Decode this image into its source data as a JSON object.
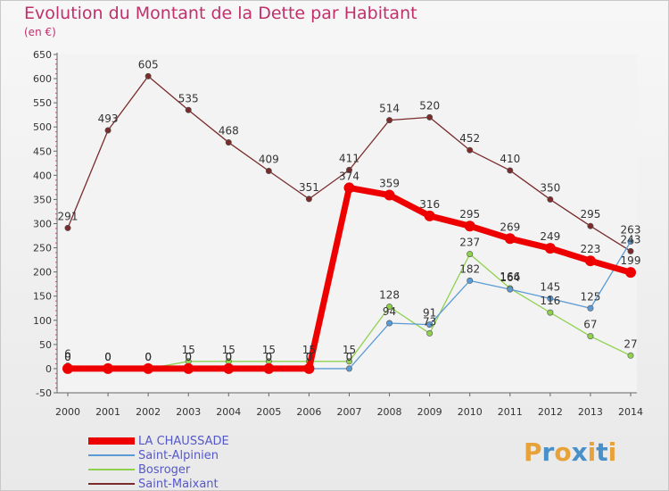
{
  "header": {
    "title": "Evolution du Montant de la Dette par Habitant",
    "unit": "(en €)"
  },
  "brand": {
    "letters": [
      "P",
      "r",
      "o",
      "x",
      "i",
      "t",
      "i"
    ],
    "colors": [
      "#e8a23a",
      "#4a90c8",
      "#e8a23a",
      "#4a90c8",
      "#e8a23a",
      "#4a90c8",
      "#e8a23a"
    ]
  },
  "chart_data": {
    "type": "line",
    "title": "Evolution du Montant de la Dette par Habitant",
    "ylabel": "(en €)",
    "x": [
      "2000",
      "2001",
      "2002",
      "2003",
      "2004",
      "2005",
      "2006",
      "2007",
      "2008",
      "2009",
      "2010",
      "2011",
      "2012",
      "2013",
      "2014"
    ],
    "yticks": [
      -50,
      0,
      50,
      100,
      150,
      200,
      250,
      300,
      350,
      400,
      450,
      500,
      550,
      600,
      650
    ],
    "ylim": [
      -50,
      650
    ],
    "grid": false,
    "legend_position": "bottom-left",
    "series": [
      {
        "name": "LA CHAUSSADE",
        "color": "#ee0000",
        "values": [
          0,
          0,
          0,
          0,
          0,
          0,
          0,
          374,
          359,
          316,
          295,
          269,
          249,
          223,
          199
        ],
        "labels": [
          "0",
          "0",
          "0",
          "0",
          "0",
          "0",
          "0",
          "374",
          "359",
          "316",
          "295",
          "269",
          "249",
          "223",
          "199"
        ]
      },
      {
        "name": "Saint-Alpinien",
        "color": "#5b9bd5",
        "values": [
          0,
          0,
          0,
          0,
          0,
          0,
          0,
          0,
          94,
          91,
          182,
          164,
          145,
          125,
          263
        ],
        "labels": [
          "0",
          "0",
          "0",
          "0",
          "0",
          "0",
          "0",
          "0",
          "94",
          "91",
          "182",
          "164",
          "145",
          "125",
          "263"
        ]
      },
      {
        "name": "Bosroger",
        "color": "#8fd14f",
        "values": [
          6,
          0,
          0,
          15,
          15,
          15,
          15,
          15,
          128,
          73,
          237,
          166,
          116,
          67,
          27
        ],
        "labels": [
          "6",
          "0",
          "0",
          "15",
          "15",
          "15",
          "15",
          "15",
          "128",
          "73",
          "237",
          "166",
          "116",
          "67",
          "27"
        ]
      },
      {
        "name": "Saint-Maixant",
        "color": "#7a2b2b",
        "values": [
          291,
          493,
          605,
          535,
          468,
          409,
          351,
          411,
          514,
          520,
          452,
          410,
          350,
          295,
          243
        ],
        "labels": [
          "291",
          "493",
          "605",
          "535",
          "468",
          "409",
          "351",
          "411",
          "514",
          "520",
          "452",
          "410",
          "350",
          "295",
          "243"
        ]
      }
    ]
  }
}
